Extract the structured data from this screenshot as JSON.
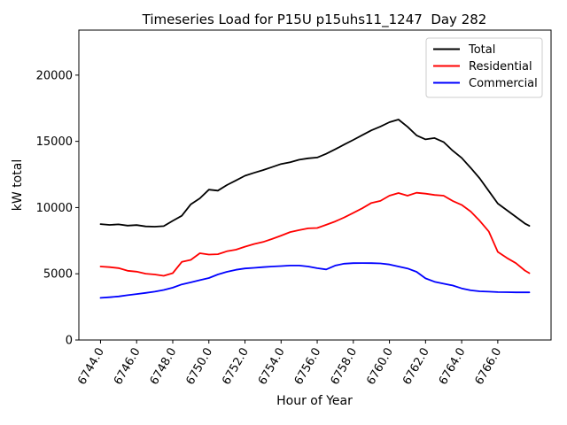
{
  "chart_data": {
    "type": "line",
    "title": "Timeseries Load for P15U p15uhs11_1247  Day 282",
    "xlabel": "Hour of Year",
    "ylabel": "kW total",
    "xlim": [
      6742.8,
      6768.95
    ],
    "ylim": [
      0,
      23400
    ],
    "grid": false,
    "xticks": [
      6744,
      6746,
      6748,
      6750,
      6752,
      6754,
      6756,
      6758,
      6760,
      6762,
      6764,
      6766
    ],
    "xtick_labels": [
      "6744.0",
      "6746.0",
      "6748.0",
      "6750.0",
      "6752.0",
      "6754.0",
      "6756.0",
      "6758.0",
      "6760.0",
      "6762.0",
      "6764.0",
      "6766.0"
    ],
    "xtick_rotation": 60,
    "yticks": [
      0,
      5000,
      10000,
      15000,
      20000
    ],
    "ytick_labels": [
      "0",
      "5000",
      "10000",
      "15000",
      "20000"
    ],
    "legend": {
      "position": "upper right"
    },
    "x": [
      6744.0,
      6744.5,
      6745.0,
      6745.5,
      6746.0,
      6746.5,
      6747.0,
      6747.5,
      6748.0,
      6748.5,
      6749.0,
      6749.5,
      6750.0,
      6750.5,
      6751.0,
      6751.5,
      6752.0,
      6752.5,
      6753.0,
      6753.5,
      6754.0,
      6754.5,
      6755.0,
      6755.5,
      6756.0,
      6756.5,
      6757.0,
      6757.5,
      6758.0,
      6758.5,
      6759.0,
      6759.5,
      6760.0,
      6760.5,
      6761.0,
      6761.5,
      6762.0,
      6762.5,
      6763.0,
      6763.5,
      6764.0,
      6764.5,
      6765.0,
      6765.5,
      6766.0,
      6766.5,
      6767.0,
      6767.5,
      6767.75
    ],
    "series": [
      {
        "name": "Total",
        "color": "#000000",
        "values": [
          8750,
          8690,
          8730,
          8640,
          8680,
          8580,
          8560,
          8600,
          9000,
          9380,
          10250,
          10700,
          11350,
          11280,
          11700,
          12050,
          12400,
          12620,
          12830,
          13060,
          13290,
          13420,
          13610,
          13720,
          13780,
          14060,
          14400,
          14760,
          15110,
          15470,
          15830,
          16120,
          16450,
          16650,
          16100,
          15450,
          15150,
          15250,
          14950,
          14300,
          13750,
          13000,
          12200,
          11250,
          10300,
          9800,
          9300,
          8800,
          8620
        ]
      },
      {
        "name": "Residential",
        "color": "#ff0000",
        "values": [
          5550,
          5500,
          5430,
          5230,
          5160,
          5010,
          4950,
          4850,
          5050,
          5900,
          6050,
          6550,
          6450,
          6480,
          6700,
          6820,
          7050,
          7250,
          7400,
          7630,
          7880,
          8150,
          8300,
          8430,
          8460,
          8700,
          8950,
          9250,
          9600,
          9950,
          10350,
          10500,
          10900,
          11100,
          10900,
          11120,
          11050,
          10950,
          10900,
          10500,
          10200,
          9700,
          9000,
          8200,
          6650,
          6200,
          5800,
          5250,
          5050
        ]
      },
      {
        "name": "Commercial",
        "color": "#0000ff",
        "values": [
          3180,
          3230,
          3290,
          3380,
          3470,
          3560,
          3650,
          3780,
          3950,
          4200,
          4350,
          4520,
          4680,
          4950,
          5150,
          5300,
          5400,
          5450,
          5500,
          5550,
          5580,
          5620,
          5620,
          5550,
          5420,
          5330,
          5620,
          5760,
          5800,
          5810,
          5800,
          5780,
          5700,
          5550,
          5400,
          5150,
          4650,
          4400,
          4250,
          4120,
          3900,
          3750,
          3680,
          3650,
          3620,
          3610,
          3600,
          3600,
          3600
        ]
      }
    ]
  }
}
